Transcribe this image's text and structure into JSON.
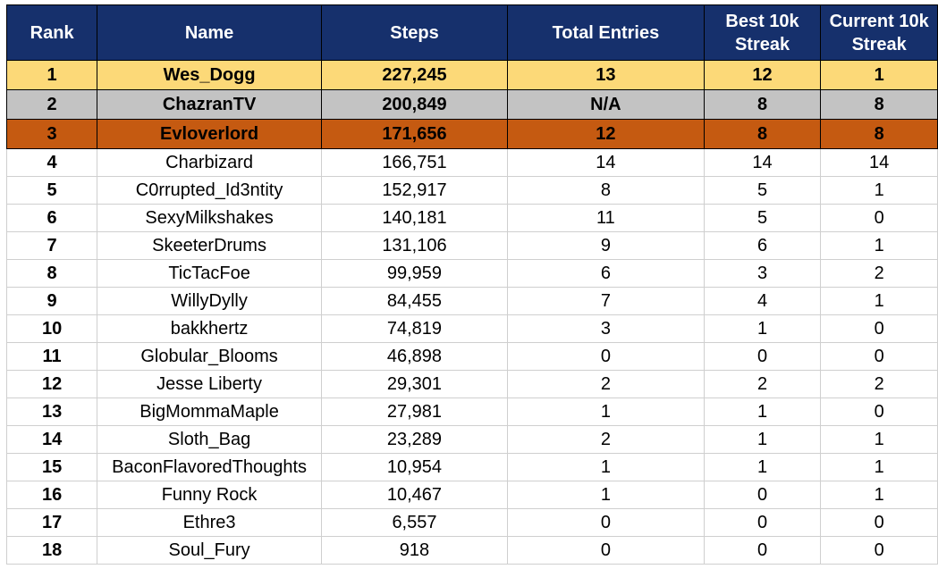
{
  "colors": {
    "header_bg": "#16306c",
    "header_text": "#ffffff",
    "gold_row": "#fcd978",
    "silver_row": "#c3c3c3",
    "bronze_row": "#c55a11"
  },
  "table": {
    "headers": {
      "rank": "Rank",
      "name": "Name",
      "steps": "Steps",
      "total_entries": "Total Entries",
      "best_streak_line1": "Best 10k",
      "best_streak_line2": "Streak",
      "current_streak_line1": "Current 10k",
      "current_streak_line2": "Streak"
    },
    "rows": [
      {
        "rank": "1",
        "name": "Wes_Dogg",
        "steps": "227,245",
        "entries": "13",
        "best": "12",
        "current": "1"
      },
      {
        "rank": "2",
        "name": "ChazranTV",
        "steps": "200,849",
        "entries": "N/A",
        "best": "8",
        "current": "8"
      },
      {
        "rank": "3",
        "name": "Evloverlord",
        "steps": "171,656",
        "entries": "12",
        "best": "8",
        "current": "8"
      },
      {
        "rank": "4",
        "name": "Charbizard",
        "steps": "166,751",
        "entries": "14",
        "best": "14",
        "current": "14"
      },
      {
        "rank": "5",
        "name": "C0rrupted_Id3ntity",
        "steps": "152,917",
        "entries": "8",
        "best": "5",
        "current": "1"
      },
      {
        "rank": "6",
        "name": "SexyMilkshakes",
        "steps": "140,181",
        "entries": "11",
        "best": "5",
        "current": "0"
      },
      {
        "rank": "7",
        "name": "SkeeterDrums",
        "steps": "131,106",
        "entries": "9",
        "best": "6",
        "current": "1"
      },
      {
        "rank": "8",
        "name": "TicTacFoe",
        "steps": "99,959",
        "entries": "6",
        "best": "3",
        "current": "2"
      },
      {
        "rank": "9",
        "name": "WillyDylly",
        "steps": "84,455",
        "entries": "7",
        "best": "4",
        "current": "1"
      },
      {
        "rank": "10",
        "name": "bakkhertz",
        "steps": "74,819",
        "entries": "3",
        "best": "1",
        "current": "0"
      },
      {
        "rank": "11",
        "name": "Globular_Blooms",
        "steps": "46,898",
        "entries": "0",
        "best": "0",
        "current": "0"
      },
      {
        "rank": "12",
        "name": "Jesse Liberty",
        "steps": "29,301",
        "entries": "2",
        "best": "2",
        "current": "2"
      },
      {
        "rank": "13",
        "name": "BigMommaMaple",
        "steps": "27,981",
        "entries": "1",
        "best": "1",
        "current": "0"
      },
      {
        "rank": "14",
        "name": "Sloth_Bag",
        "steps": "23,289",
        "entries": "2",
        "best": "1",
        "current": "1"
      },
      {
        "rank": "15",
        "name": "BaconFlavoredThoughts",
        "steps": "10,954",
        "entries": "1",
        "best": "1",
        "current": "1"
      },
      {
        "rank": "16",
        "name": "Funny Rock",
        "steps": "10,467",
        "entries": "1",
        "best": "0",
        "current": "1"
      },
      {
        "rank": "17",
        "name": "Ethre3",
        "steps": "6,557",
        "entries": "0",
        "best": "0",
        "current": "0"
      },
      {
        "rank": "18",
        "name": "Soul_Fury",
        "steps": "918",
        "entries": "0",
        "best": "0",
        "current": "0"
      }
    ]
  }
}
